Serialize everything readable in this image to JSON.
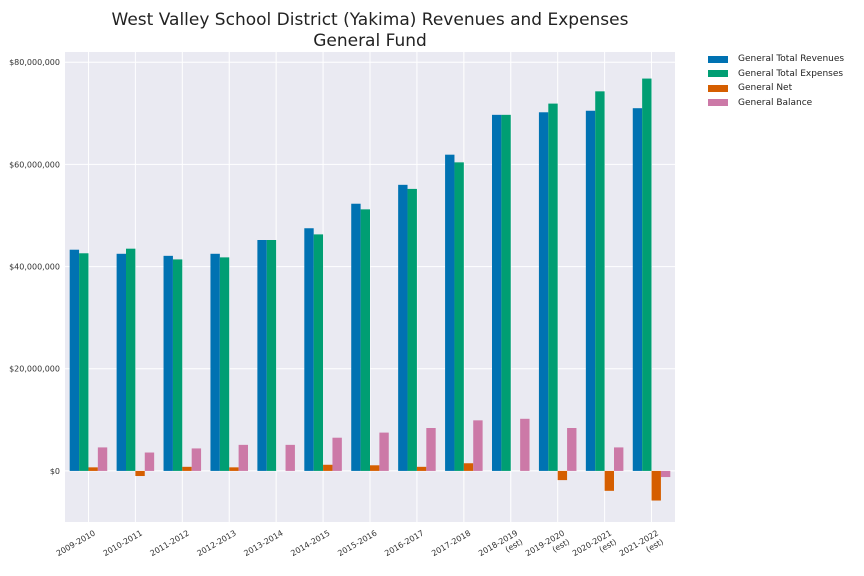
{
  "chart_data": {
    "type": "bar",
    "title": [
      "West Valley School District (Yakima) Revenues and Expenses",
      "General Fund"
    ],
    "xlabel": "",
    "ylabel": "",
    "categories": [
      [
        "2009-2010"
      ],
      [
        "2010-2011"
      ],
      [
        "2011-2012"
      ],
      [
        "2012-2013"
      ],
      [
        "2013-2014"
      ],
      [
        "2014-2015"
      ],
      [
        "2015-2016"
      ],
      [
        "2016-2017"
      ],
      [
        "2017-2018"
      ],
      [
        "2018-2019",
        "(est)"
      ],
      [
        "2019-2020",
        "(est)"
      ],
      [
        "2020-2021",
        "(est)"
      ],
      [
        "2021-2022",
        "(est)"
      ]
    ],
    "ylim": [
      -10000000,
      82000000
    ],
    "yticks": [
      0,
      20000000,
      40000000,
      60000000,
      80000000
    ],
    "ytick_labels": [
      "$0",
      "$20,000,000",
      "$40,000,000",
      "$60,000,000",
      "$80,000,000"
    ],
    "grid": true,
    "legend_position": "outside-top-right",
    "series": [
      {
        "name": "General Total Revenues",
        "color": "#0072b2",
        "values": [
          43300000,
          42500000,
          42100000,
          42500000,
          45200000,
          47500000,
          52300000,
          56000000,
          61900000,
          69700000,
          70200000,
          70500000,
          71000000
        ]
      },
      {
        "name": "General Total Expenses",
        "color": "#009e73",
        "values": [
          42600000,
          43500000,
          41400000,
          41800000,
          45200000,
          46300000,
          51200000,
          55200000,
          60400000,
          69700000,
          71900000,
          74300000,
          76800000
        ]
      },
      {
        "name": "General Net",
        "color": "#d55e00",
        "values": [
          700000,
          -1000000,
          800000,
          700000,
          0,
          1200000,
          1100000,
          800000,
          1500000,
          0,
          -1800000,
          -3900000,
          -5800000
        ]
      },
      {
        "name": "General Balance",
        "color": "#cc79a7",
        "values": [
          4600000,
          3600000,
          4400000,
          5100000,
          5100000,
          6500000,
          7500000,
          8400000,
          9900000,
          10200000,
          8400000,
          4600000,
          -1200000
        ]
      }
    ]
  },
  "style": {
    "plot_background": "#eaeaf2",
    "grid_color": "#ffffff"
  }
}
